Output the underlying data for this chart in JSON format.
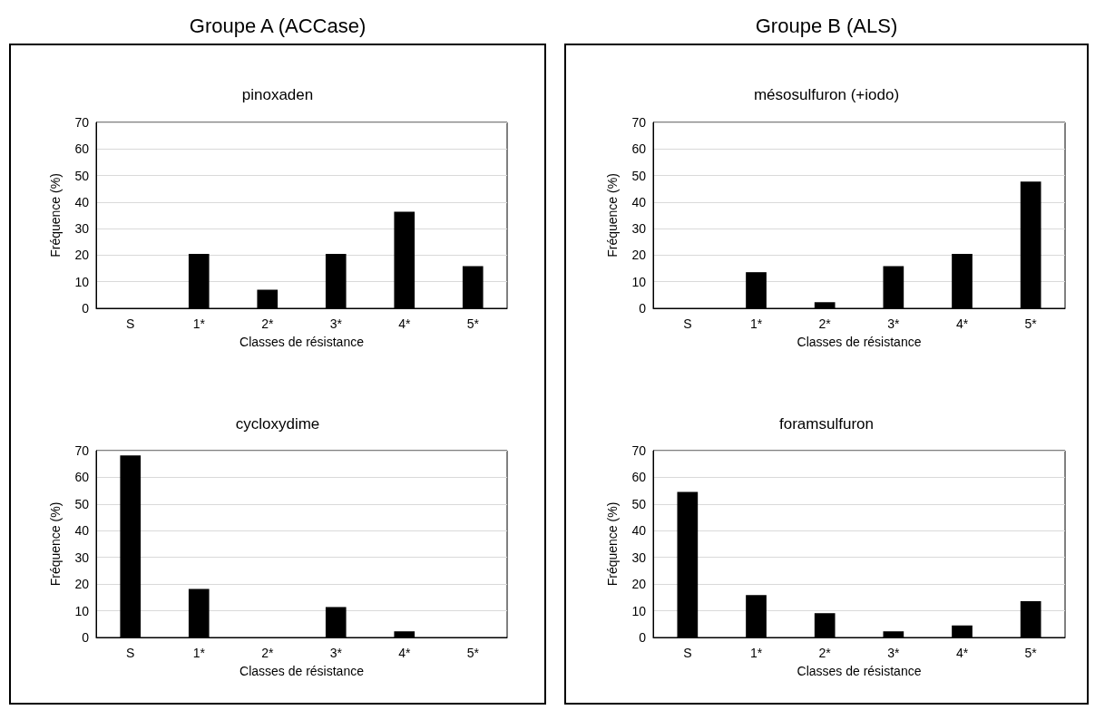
{
  "chart_data": [
    {
      "type": "bar",
      "title": "pinoxaden",
      "annotations": [
        "Groupe A (ACCase)"
      ],
      "xlabel": "Classes de résistance",
      "ylabel": "Fréquence (%)",
      "categories": [
        "S",
        "1*",
        "2*",
        "3*",
        "4*",
        "5*"
      ],
      "values": [
        0,
        20.5,
        7,
        20.5,
        36.4,
        15.9
      ],
      "color": "#000000",
      "ylim": [
        0,
        70
      ],
      "yticks": [
        0,
        10,
        20,
        30,
        40,
        50,
        60,
        70
      ],
      "grid": "y"
    },
    {
      "type": "bar",
      "title": "mésosulfuron (+iodo)",
      "annotations": [
        "Groupe B (ALS)"
      ],
      "xlabel": "Classes de résistance",
      "ylabel": "Fréquence (%)",
      "categories": [
        "S",
        "1*",
        "2*",
        "3*",
        "4*",
        "5*"
      ],
      "values": [
        0,
        13.6,
        2.3,
        15.9,
        20.5,
        47.7
      ],
      "color": "#000000",
      "ylim": [
        0,
        70
      ],
      "yticks": [
        0,
        10,
        20,
        30,
        40,
        50,
        60,
        70
      ],
      "grid": "y"
    },
    {
      "type": "bar",
      "title": "cycloxydime",
      "xlabel": "Classes de résistance",
      "ylabel": "Fréquence (%)",
      "categories": [
        "S",
        "1*",
        "2*",
        "3*",
        "4*",
        "5*"
      ],
      "values": [
        68.2,
        18.2,
        0,
        11.4,
        2.3,
        0
      ],
      "color": "#000000",
      "ylim": [
        0,
        70
      ],
      "yticks": [
        0,
        10,
        20,
        30,
        40,
        50,
        60,
        70
      ],
      "grid": "y"
    },
    {
      "type": "bar",
      "title": "foramsulfuron",
      "xlabel": "Classes de résistance",
      "ylabel": "Fréquence (%)",
      "categories": [
        "S",
        "1*",
        "2*",
        "3*",
        "4*",
        "5*"
      ],
      "values": [
        54.5,
        15.9,
        9.1,
        2.3,
        4.5,
        13.6
      ],
      "color": "#000000",
      "ylim": [
        0,
        70
      ],
      "yticks": [
        0,
        10,
        20,
        30,
        40,
        50,
        60,
        70
      ],
      "grid": "y"
    }
  ]
}
